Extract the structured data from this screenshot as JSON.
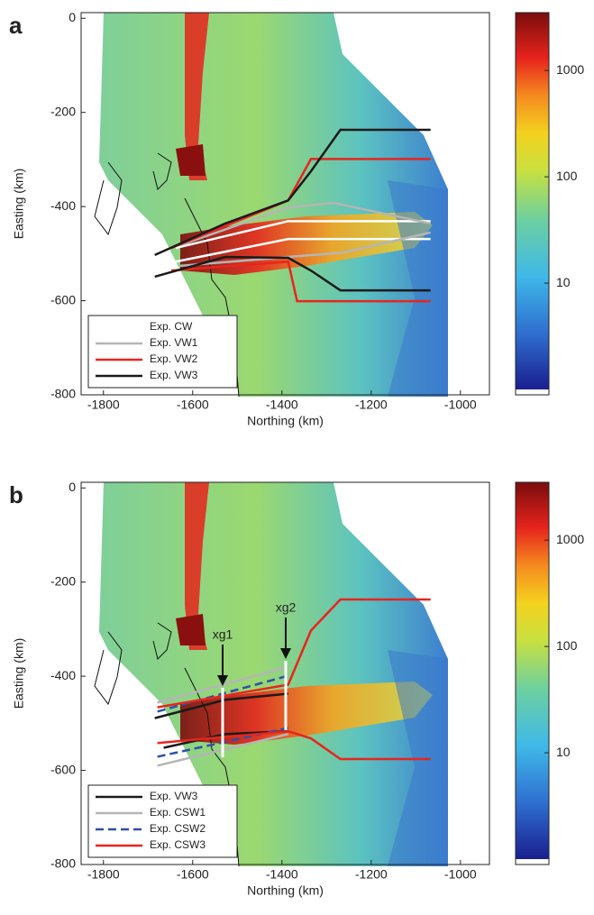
{
  "chart_data": [
    {
      "type": "line",
      "label": "a",
      "xlabel": "Northing (km)",
      "ylabel": "Easting (km)",
      "xlim": [
        -1850,
        -935
      ],
      "ylim": [
        -800,
        12
      ],
      "xticks": [
        -1800,
        -1600,
        -1400,
        -1200,
        -1000
      ],
      "yticks": [
        0,
        -200,
        -400,
        -600,
        -800
      ],
      "legend": "lower left",
      "colorbar": {
        "lim": [
          1,
          3500
        ],
        "ticks": [
          10,
          100,
          1000
        ],
        "log": true
      },
      "series": [
        {
          "name": "Exp. CW",
          "color": "#ffffff",
          "dash": false,
          "x": [
            -1638,
            -1386,
            -1067,
            null,
            -1638,
            -1386,
            -1067
          ],
          "values": [
            -488,
            -431,
            -431,
            null,
            -517,
            -469,
            -469
          ]
        },
        {
          "name": "Exp. VW1",
          "color": "#b5b5b5",
          "dash": false,
          "x": [
            -1628,
            -1386,
            -1285,
            -1067,
            null,
            -1628,
            -1386,
            -1265,
            -1067
          ],
          "values": [
            -482,
            -402,
            -392,
            -436,
            null,
            -526,
            -507,
            -498,
            -455
          ]
        },
        {
          "name": "Exp. VW2",
          "color": "#e8251d",
          "dash": false,
          "x": [
            -1648,
            -1386,
            -1335,
            -1067,
            null,
            -1648,
            -1386,
            -1366,
            -1067
          ],
          "values": [
            -488,
            -387,
            -299,
            -299,
            null,
            -536,
            -517,
            -601,
            -601
          ]
        },
        {
          "name": "Exp. VW3",
          "color": "#1a1a1a",
          "dash": false,
          "x": [
            -1685,
            -1527,
            -1386,
            -1335,
            -1269,
            -1067,
            null,
            -1685,
            -1527,
            -1386,
            -1335,
            -1269,
            -1067
          ],
          "values": [
            -503,
            -436,
            -387,
            -325,
            -237,
            -237,
            null,
            -549,
            -507,
            -509,
            -536,
            -578,
            -578
          ]
        }
      ]
    },
    {
      "type": "line",
      "label": "b",
      "xlabel": "Northing (km)",
      "ylabel": "Easting (km)",
      "xlim": [
        -1850,
        -935
      ],
      "ylim": [
        -800,
        12
      ],
      "xticks": [
        -1800,
        -1600,
        -1400,
        -1200,
        -1000
      ],
      "yticks": [
        0,
        -200,
        -400,
        -600,
        -800
      ],
      "legend": "lower left",
      "colorbar": {
        "lim": [
          1,
          3500
        ],
        "ticks": [
          10,
          100,
          1000
        ],
        "log": true
      },
      "annotations": [
        "xg1",
        "xg2"
      ],
      "series": [
        {
          "name": "Exp. VW3",
          "color": "#1a1a1a",
          "dash": false,
          "x": [
            -1685,
            -1527,
            -1386,
            null,
            -1665,
            -1527,
            -1386
          ],
          "values": [
            -489,
            -450,
            -437,
            null,
            -552,
            -523,
            -517
          ]
        },
        {
          "name": "Exp. CSW1",
          "color": "#b5b5b5",
          "dash": false,
          "x": [
            -1679,
            -1386,
            null,
            -1679,
            -1386
          ],
          "values": [
            -456,
            -380,
            null,
            -590,
            -523
          ]
        },
        {
          "name": "Exp. CSW2",
          "color": "#2f4fa8",
          "dash": true,
          "x": [
            -1679,
            -1386,
            null,
            -1679,
            -1386
          ],
          "values": [
            -475,
            -399,
            null,
            -571,
            -510
          ]
        },
        {
          "name": "Exp. CSW3",
          "color": "#e8251d",
          "dash": false,
          "x": [
            -1679,
            -1386,
            -1335,
            -1269,
            -1067,
            null,
            -1679,
            -1386,
            -1335,
            -1269,
            -1067
          ],
          "values": [
            -466,
            -418,
            -303,
            -237,
            -237,
            null,
            -542,
            -517,
            -532,
            -576,
            -576
          ]
        }
      ]
    }
  ]
}
